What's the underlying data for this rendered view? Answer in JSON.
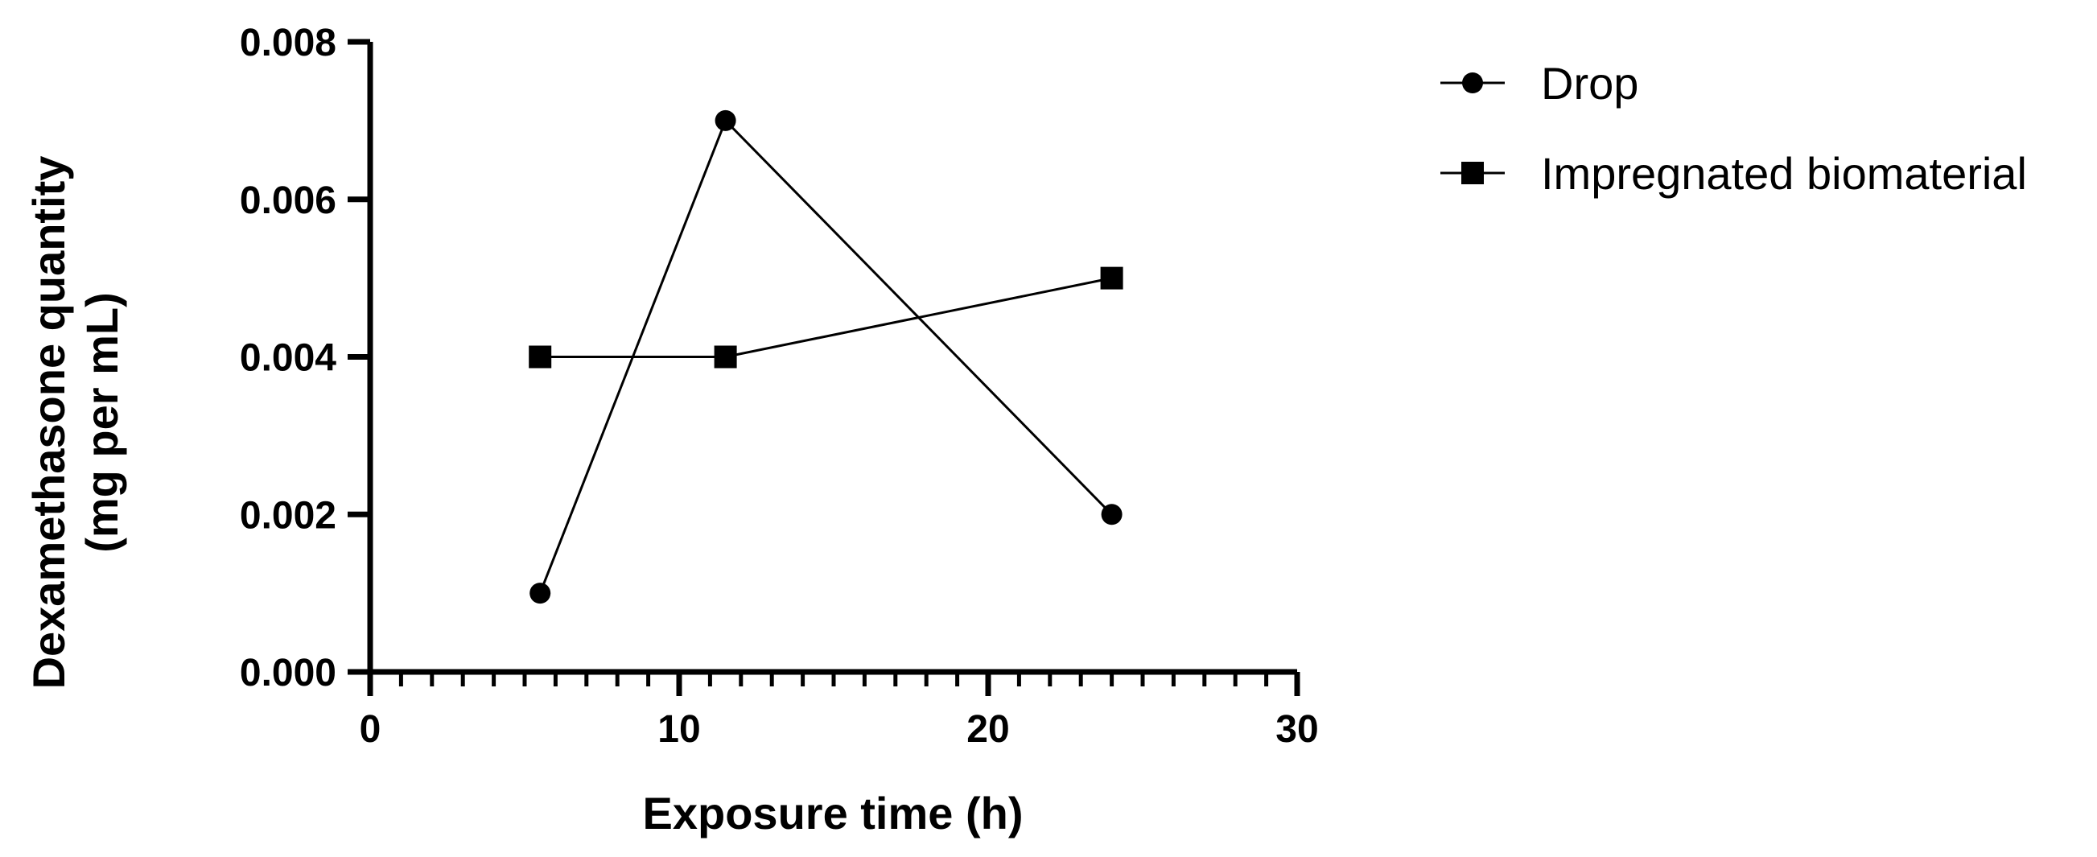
{
  "chart_data": {
    "type": "line",
    "xlabel": "Exposure time (h)",
    "ylabel_lines": [
      "Dexamethasone quantity",
      "(mg per mL)"
    ],
    "xlim": [
      0,
      30
    ],
    "ylim": [
      0,
      0.008
    ],
    "x_ticks": [
      "0",
      "10",
      "20",
      "30"
    ],
    "y_ticks": [
      "0.000",
      "0.002",
      "0.004",
      "0.006",
      "0.008"
    ],
    "grid": false,
    "legend_position": "top-right",
    "series": [
      {
        "name": "Drop",
        "marker": "circle",
        "color": "#000000",
        "x": [
          5.5,
          11.5,
          24
        ],
        "values": [
          0.001,
          0.007,
          0.002
        ]
      },
      {
        "name": "Impregnated biomaterial",
        "marker": "square",
        "color": "#000000",
        "x": [
          5.5,
          11.5,
          24
        ],
        "values": [
          0.004,
          0.004,
          0.005
        ]
      }
    ]
  }
}
